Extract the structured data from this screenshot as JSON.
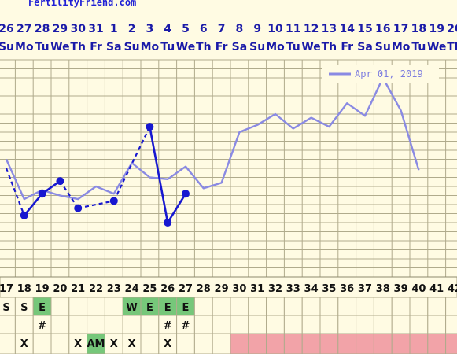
{
  "brand": "FertilityFriend.com",
  "colors": {
    "background": "#fffbe3",
    "grid": "#b0ab8c",
    "current": "#1717d0",
    "comparison": "#8a8ae3",
    "green": "#76c77a",
    "pink": "#f2a3a8"
  },
  "chart_data": {
    "type": "line",
    "x_dates": [
      "26",
      "27",
      "28",
      "29",
      "30",
      "31",
      "1",
      "2",
      "3",
      "4",
      "5",
      "6",
      "7",
      "8",
      "9",
      "10",
      "11",
      "12",
      "13",
      "14",
      "15",
      "16",
      "17",
      "18",
      "19",
      "20"
    ],
    "x_days": [
      "Su",
      "Mo",
      "Tu",
      "We",
      "Th",
      "Fr",
      "Sa",
      "Su",
      "Mo",
      "Tu",
      "We",
      "Th",
      "Fr",
      "Sa",
      "Su",
      "Mo",
      "Tu",
      "We",
      "Th",
      "Fr",
      "Sa",
      "Su",
      "Mo",
      "Tu",
      "We",
      "Th"
    ],
    "cycle_days": [
      "17",
      "18",
      "19",
      "20",
      "21",
      "22",
      "23",
      "24",
      "25",
      "26",
      "27",
      "28",
      "29",
      "30",
      "31",
      "32",
      "33",
      "34",
      "35",
      "36",
      "37",
      "38",
      "39",
      "40",
      "41",
      "42"
    ],
    "ylim": [
      0,
      12
    ],
    "legend": {
      "label": "Apr 01, 2019",
      "position": "top-right"
    },
    "series": [
      {
        "role": "current",
        "style": "solid-points",
        "values": [
          6.0,
          3.4,
          4.6,
          5.3,
          3.8,
          null,
          4.2,
          null,
          8.3,
          3.0,
          4.6,
          null,
          null,
          null,
          null,
          null,
          null,
          null,
          null,
          null,
          null,
          null,
          null,
          null,
          null,
          null
        ],
        "solid_segments": [
          [
            1,
            2
          ],
          [
            2,
            3
          ],
          [
            8,
            9
          ],
          [
            9,
            10
          ]
        ],
        "dashed_segments": [
          [
            0,
            1
          ],
          [
            3,
            4
          ],
          [
            4,
            6
          ],
          [
            6,
            8
          ]
        ]
      },
      {
        "role": "comparison",
        "name": "Apr 01, 2019",
        "values": [
          6.5,
          4.3,
          4.8,
          4.5,
          4.3,
          5.0,
          4.6,
          6.3,
          5.5,
          5.4,
          6.1,
          4.9,
          5.2,
          8.0,
          8.4,
          9.0,
          8.2,
          8.8,
          8.3,
          9.6,
          8.9,
          11.0,
          9.2,
          5.9,
          null,
          null
        ]
      }
    ]
  },
  "rows": {
    "row1": [
      "S",
      "S",
      "E",
      "",
      "",
      "",
      "",
      "W",
      "E",
      "E",
      "E",
      "",
      "",
      "",
      "",
      "",
      "",
      "",
      "",
      "",
      "",
      "",
      "",
      "",
      "",
      ""
    ],
    "row1_green": [
      2,
      7,
      8,
      9,
      10
    ],
    "row2": [
      "",
      "",
      "#",
      "",
      "",
      "",
      "",
      "",
      "",
      "#",
      "#",
      "",
      "",
      "",
      "",
      "",
      "",
      "",
      "",
      "",
      "",
      "",
      "",
      "",
      "",
      ""
    ],
    "row3": [
      "",
      "X",
      "",
      "",
      "X",
      "AM",
      "X",
      "X",
      "",
      "X",
      "",
      "",
      "",
      "",
      "",
      "",
      "",
      "",
      "",
      "",
      "",
      "",
      "",
      "",
      "",
      ""
    ]
  }
}
